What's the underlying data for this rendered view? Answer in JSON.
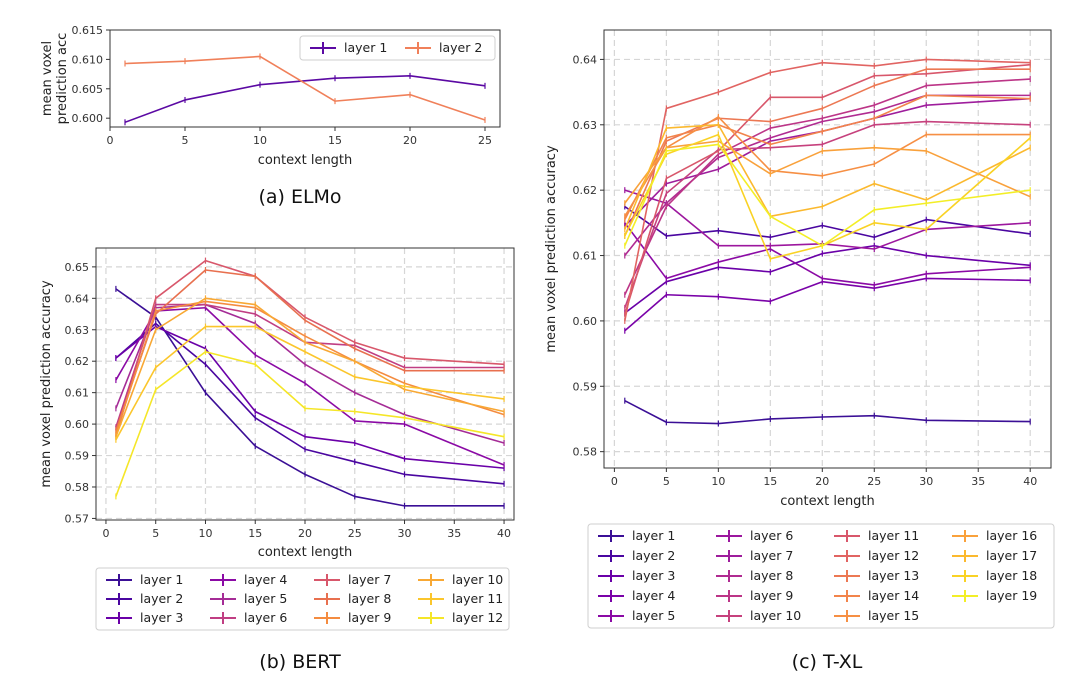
{
  "chart_data": [
    {
      "type": "line",
      "caption": "(a) ELMo",
      "xlabel": "context length",
      "ylabel": "mean voxel\nprediction acc",
      "xlim": [
        0,
        26
      ],
      "ylim": [
        0.5985,
        0.615
      ],
      "xticks": [
        0,
        5,
        10,
        15,
        20,
        25
      ],
      "yticks": [
        0.6,
        0.605,
        0.61,
        0.615
      ],
      "ytick_labels": [
        "0.600",
        "0.605",
        "0.610",
        "0.615"
      ],
      "x": [
        1,
        5,
        10,
        15,
        20,
        25
      ],
      "grid": false,
      "legend_position": "top-right",
      "legend_cols": 2,
      "series": [
        {
          "name": "layer 1",
          "color": "#5b09a3",
          "values": [
            0.5993,
            0.6031,
            0.6057,
            0.6068,
            0.6072,
            0.6055
          ]
        },
        {
          "name": "layer 2",
          "color": "#f0805a",
          "values": [
            0.6093,
            0.6097,
            0.6105,
            0.6029,
            0.604,
            0.5997
          ]
        }
      ]
    },
    {
      "type": "line",
      "caption": "(b) BERT",
      "xlabel": "context length",
      "ylabel": "mean voxel prediction accuracy",
      "xlim": [
        -1,
        41
      ],
      "ylim": [
        0.5695,
        0.656
      ],
      "xticks": [
        0,
        5,
        10,
        15,
        20,
        25,
        30,
        35,
        40
      ],
      "yticks": [
        0.57,
        0.58,
        0.59,
        0.6,
        0.61,
        0.62,
        0.63,
        0.64,
        0.65
      ],
      "ytick_labels": [
        "0.57",
        "0.58",
        "0.59",
        "0.60",
        "0.61",
        "0.62",
        "0.63",
        "0.64",
        "0.65"
      ],
      "x": [
        1,
        5,
        10,
        15,
        20,
        25,
        30,
        40
      ],
      "grid": true,
      "legend_position": "below",
      "legend_cols": 4,
      "series": [
        {
          "name": "layer 1",
          "color": "#3b0f96",
          "values": [
            0.643,
            0.634,
            0.61,
            0.593,
            0.584,
            0.577,
            0.574,
            0.574
          ]
        },
        {
          "name": "layer 2",
          "color": "#4a06a0",
          "values": [
            0.621,
            0.632,
            0.619,
            0.602,
            0.592,
            0.588,
            0.584,
            0.581
          ]
        },
        {
          "name": "layer 3",
          "color": "#6a00a8",
          "values": [
            0.621,
            0.631,
            0.624,
            0.604,
            0.596,
            0.594,
            0.589,
            0.586
          ]
        },
        {
          "name": "layer 4",
          "color": "#8b0aa5",
          "values": [
            0.614,
            0.636,
            0.637,
            0.622,
            0.613,
            0.601,
            0.6,
            0.587
          ]
        },
        {
          "name": "layer 5",
          "color": "#a52c96",
          "values": [
            0.605,
            0.637,
            0.638,
            0.632,
            0.619,
            0.61,
            0.603,
            0.594
          ]
        },
        {
          "name": "layer 6",
          "color": "#c03e83",
          "values": [
            0.599,
            0.638,
            0.638,
            0.635,
            0.626,
            0.625,
            0.618,
            0.618
          ]
        },
        {
          "name": "layer 7",
          "color": "#d8576b",
          "values": [
            0.596,
            0.64,
            0.652,
            0.647,
            0.634,
            0.626,
            0.621,
            0.619
          ]
        },
        {
          "name": "layer 8",
          "color": "#e8704f",
          "values": [
            0.598,
            0.635,
            0.649,
            0.647,
            0.633,
            0.624,
            0.617,
            0.617
          ]
        },
        {
          "name": "layer 9",
          "color": "#f48c40",
          "values": [
            0.597,
            0.636,
            0.639,
            0.637,
            0.628,
            0.62,
            0.613,
            0.603
          ]
        },
        {
          "name": "layer 10",
          "color": "#f8a834",
          "values": [
            0.596,
            0.63,
            0.64,
            0.638,
            0.626,
            0.62,
            0.611,
            0.604
          ]
        },
        {
          "name": "layer 11",
          "color": "#fbc62c",
          "values": [
            0.595,
            0.618,
            0.631,
            0.631,
            0.623,
            0.615,
            0.612,
            0.608
          ]
        },
        {
          "name": "layer 12",
          "color": "#f5e628",
          "values": [
            0.577,
            0.611,
            0.623,
            0.619,
            0.605,
            0.604,
            0.602,
            0.596
          ]
        }
      ]
    },
    {
      "type": "line",
      "caption": "(c) T-XL",
      "xlabel": "context length",
      "ylabel": "mean voxel prediction accuracy",
      "xlim": [
        -1,
        42
      ],
      "ylim": [
        0.5775,
        0.6445
      ],
      "xticks": [
        0,
        5,
        10,
        15,
        20,
        25,
        30,
        35,
        40
      ],
      "yticks": [
        0.58,
        0.59,
        0.6,
        0.61,
        0.62,
        0.63,
        0.64
      ],
      "ytick_labels": [
        "0.58",
        "0.59",
        "0.60",
        "0.61",
        "0.62",
        "0.63",
        "0.64"
      ],
      "x": [
        1,
        5,
        10,
        15,
        20,
        25,
        30,
        40
      ],
      "grid": true,
      "legend_position": "below",
      "legend_cols": 4,
      "series": [
        {
          "name": "layer 1",
          "color": "#3b0f96",
          "values": [
            0.5878,
            0.5845,
            0.5843,
            0.585,
            0.5853,
            0.5855,
            0.5848,
            0.5846
          ]
        },
        {
          "name": "layer 2",
          "color": "#4a06a0",
          "values": [
            0.6175,
            0.613,
            0.6138,
            0.6128,
            0.6146,
            0.6128,
            0.6155,
            0.6133
          ]
        },
        {
          "name": "layer 3",
          "color": "#6a00a8",
          "values": [
            0.6012,
            0.606,
            0.6082,
            0.6075,
            0.6103,
            0.6115,
            0.61,
            0.6085
          ]
        },
        {
          "name": "layer 4",
          "color": "#7a02a8",
          "values": [
            0.5985,
            0.604,
            0.6037,
            0.603,
            0.606,
            0.605,
            0.6065,
            0.6062
          ]
        },
        {
          "name": "layer 5",
          "color": "#8b0aa5",
          "values": [
            0.615,
            0.6065,
            0.609,
            0.611,
            0.6065,
            0.6055,
            0.6072,
            0.6082
          ]
        },
        {
          "name": "layer 6",
          "color": "#9c179e",
          "values": [
            0.62,
            0.618,
            0.6115,
            0.6115,
            0.6118,
            0.611,
            0.614,
            0.615
          ]
        },
        {
          "name": "layer 7",
          "color": "#9e1d9c",
          "values": [
            0.6145,
            0.621,
            0.6232,
            0.6275,
            0.629,
            0.631,
            0.633,
            0.634
          ]
        },
        {
          "name": "layer 8",
          "color": "#b02b91",
          "values": [
            0.61,
            0.618,
            0.625,
            0.628,
            0.6305,
            0.632,
            0.6345,
            0.6345
          ]
        },
        {
          "name": "layer 9",
          "color": "#bc3587",
          "values": [
            0.604,
            0.6175,
            0.6255,
            0.6295,
            0.631,
            0.633,
            0.636,
            0.637
          ]
        },
        {
          "name": "layer 10",
          "color": "#c6417d",
          "values": [
            0.602,
            0.6195,
            0.6262,
            0.6265,
            0.627,
            0.63,
            0.6305,
            0.63
          ]
        },
        {
          "name": "layer 11",
          "color": "#d8576b",
          "values": [
            0.601,
            0.6218,
            0.626,
            0.6342,
            0.6342,
            0.6375,
            0.6378,
            0.6392
          ]
        },
        {
          "name": "layer 12",
          "color": "#e16462",
          "values": [
            0.6,
            0.6325,
            0.635,
            0.638,
            0.6395,
            0.639,
            0.64,
            0.6395
          ]
        },
        {
          "name": "layer 13",
          "color": "#ec7853",
          "values": [
            0.613,
            0.6275,
            0.631,
            0.6305,
            0.6325,
            0.636,
            0.6385,
            0.6385
          ]
        },
        {
          "name": "layer 14",
          "color": "#f2844b",
          "values": [
            0.6155,
            0.628,
            0.63,
            0.627,
            0.629,
            0.631,
            0.6345,
            0.634
          ]
        },
        {
          "name": "layer 15",
          "color": "#f68f44",
          "values": [
            0.616,
            0.6265,
            0.6312,
            0.623,
            0.6222,
            0.624,
            0.6285,
            0.6285
          ]
        },
        {
          "name": "layer 16",
          "color": "#f9a13b",
          "values": [
            0.618,
            0.6265,
            0.6275,
            0.6225,
            0.626,
            0.6265,
            0.626,
            0.619
          ]
        },
        {
          "name": "layer 17",
          "color": "#fbb92e",
          "values": [
            0.614,
            0.6295,
            0.63,
            0.616,
            0.6175,
            0.621,
            0.6185,
            0.6265
          ]
        },
        {
          "name": "layer 18",
          "color": "#f9d225",
          "values": [
            0.613,
            0.6255,
            0.6285,
            0.6095,
            0.6115,
            0.615,
            0.614,
            0.628
          ]
        },
        {
          "name": "layer 19",
          "color": "#f3ee27",
          "values": [
            0.6115,
            0.626,
            0.627,
            0.616,
            0.6115,
            0.617,
            0.618,
            0.62
          ]
        }
      ]
    }
  ]
}
